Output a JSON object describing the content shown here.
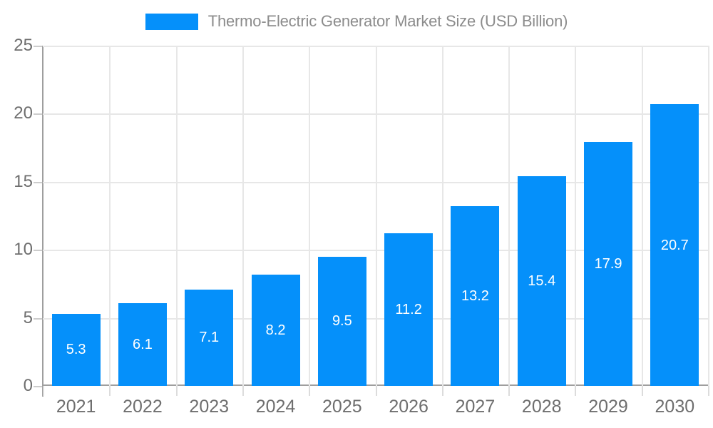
{
  "chart_data": {
    "type": "bar",
    "title": "Thermo-Electric Generator Market Size (USD Billion)",
    "legend": [
      "Thermo-Electric Generator Market Size (USD Billion)"
    ],
    "legend_position": "top-center",
    "categories": [
      "2021",
      "2022",
      "2023",
      "2024",
      "2025",
      "2026",
      "2027",
      "2028",
      "2029",
      "2030"
    ],
    "values": [
      5.3,
      6.1,
      7.1,
      8.2,
      9.5,
      11.2,
      13.2,
      15.4,
      17.9,
      20.7
    ],
    "value_labels": [
      "5.3",
      "6.1",
      "7.1",
      "8.2",
      "9.5",
      "11.2",
      "13.2",
      "15.4",
      "17.9",
      "20.7"
    ],
    "bar_label_position": "inside-center",
    "xlabel": "",
    "ylabel": "",
    "ylim": [
      0,
      25
    ],
    "y_ticks": [
      0,
      5,
      10,
      15,
      20,
      25
    ],
    "grid": "horizontal and vertical gridlines on"
  },
  "colors": {
    "bar": "#0590fa",
    "bar_value_text": "#ffffff",
    "axis_line": "#9e9e9e",
    "gridline": "#e7e7e7",
    "x_tick": "#dcdcdc",
    "y_tick": "#cccccc",
    "axis_text": "#6e6e6e",
    "legend_text": "#8c8c8c",
    "background": "#ffffff"
  }
}
